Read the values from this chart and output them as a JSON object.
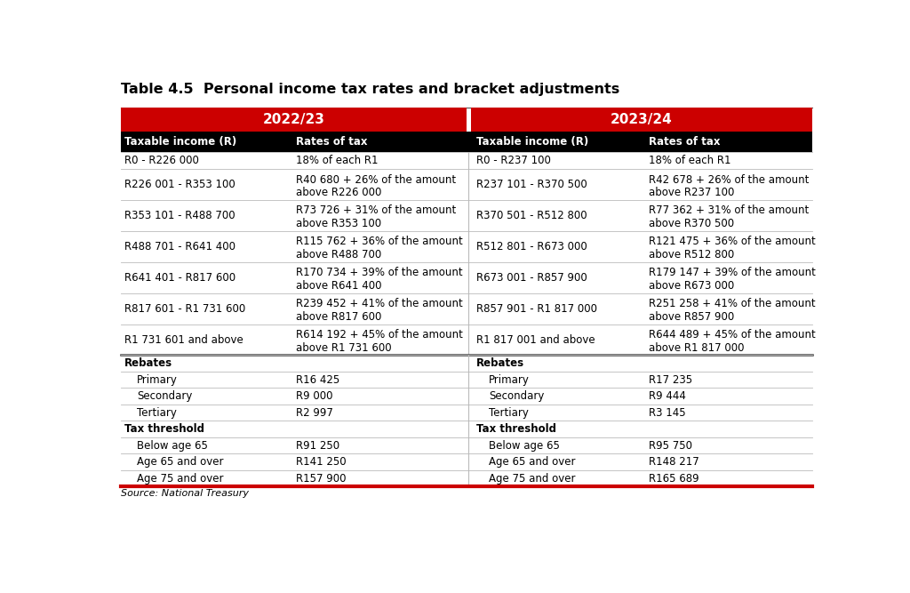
{
  "title": "Table 4.5  Personal income tax rates and bracket adjustments",
  "source": "Source: National Treasury",
  "header_year_left": "2022/23",
  "header_year_right": "2023/24",
  "col_headers": [
    "Taxable income (R)",
    "Rates of tax",
    "Taxable income (R)",
    "Rates of tax"
  ],
  "red_color": "#CC0000",
  "black_color": "#000000",
  "white_color": "#FFFFFF",
  "bg_color": "#FFFFFF",
  "rows": [
    [
      "R0 - R226 000",
      "18% of each R1",
      "R0 - R237 100",
      "18% of each R1"
    ],
    [
      "R226 001 - R353 100",
      "R40 680 + 26% of the amount\nabove R226 000",
      "R237 101 - R370 500",
      "R42 678 + 26% of the amount\nabove R237 100"
    ],
    [
      "R353 101 - R488 700",
      "R73 726 + 31% of the amount\nabove R353 100",
      "R370 501 - R512 800",
      "R77 362 + 31% of the amount\nabove R370 500"
    ],
    [
      "R488 701 - R641 400",
      "R115 762 + 36% of the amount\nabove R488 700",
      "R512 801 - R673 000",
      "R121 475 + 36% of the amount\nabove R512 800"
    ],
    [
      "R641 401 - R817 600",
      "R170 734 + 39% of the amount\nabove R641 400",
      "R673 001 - R857 900",
      "R179 147 + 39% of the amount\nabove R673 000"
    ],
    [
      "R817 601 - R1 731 600",
      "R239 452 + 41% of the amount\nabove R817 600",
      "R857 901 - R1 817 000",
      "R251 258 + 41% of the amount\nabove R857 900"
    ],
    [
      "R1 731 601 and above",
      "R614 192 + 45% of the amount\nabove R1 731 600",
      "R1 817 001 and above",
      "R644 489 + 45% of the amount\nabove R1 817 000"
    ]
  ],
  "rebates_rows": [
    [
      "Primary",
      "R16 425",
      "Primary",
      "R17 235"
    ],
    [
      "Secondary",
      "R9 000",
      "Secondary",
      "R9 444"
    ],
    [
      "Tertiary",
      "R2 997",
      "Tertiary",
      "R3 145"
    ]
  ],
  "threshold_rows": [
    [
      "Below age 65",
      "R91 250",
      "Below age 65",
      "R95 750"
    ],
    [
      "Age 65 and over",
      "R141 250",
      "Age 65 and over",
      "R148 217"
    ],
    [
      "Age 75 and over",
      "R157 900",
      "Age 75 and over",
      "R165 689"
    ]
  ]
}
